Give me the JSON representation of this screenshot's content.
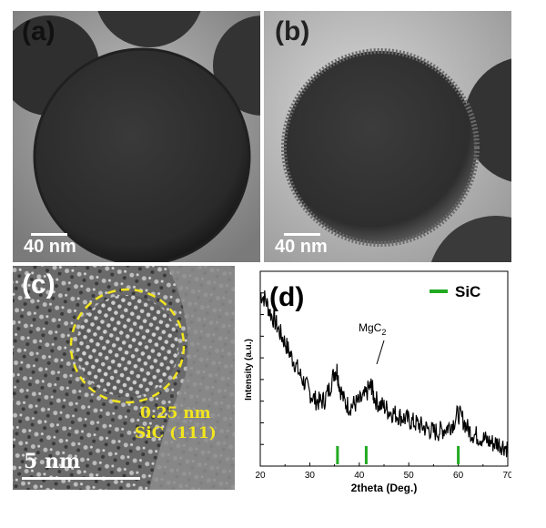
{
  "panels": {
    "a": {
      "label": "(a)",
      "scale_label": "40 nm"
    },
    "b": {
      "label": "(b)",
      "scale_label": "40 nm"
    },
    "c": {
      "label": "(c)",
      "scale_label": "5 nm",
      "spacing": "0.25 nm",
      "plane": "SiC (111)",
      "colors": {
        "annotation": "#f2e51d"
      }
    },
    "d": {
      "label": "(d)",
      "annotation": "MgC",
      "annotation_sub": "2",
      "legend": "SiC"
    }
  },
  "chart_data": {
    "type": "line",
    "xlabel": "2theta (Deg.)",
    "ylabel": "Intensity (a.u.)",
    "xlim": [
      20,
      70
    ],
    "x_ticks": [
      20,
      30,
      40,
      50,
      60,
      70
    ],
    "series": [
      {
        "name": "",
        "x": [
          20,
          21,
          22,
          23,
          24,
          25,
          26,
          27,
          28,
          29,
          30,
          31,
          32,
          33,
          34,
          35,
          35.5,
          36,
          37,
          38,
          39,
          40,
          41,
          42,
          42.5,
          43,
          44,
          45,
          46,
          47,
          48,
          49,
          50,
          51,
          52,
          53,
          54,
          55,
          56,
          57,
          58,
          59,
          60,
          61,
          62,
          63,
          64,
          65,
          66,
          67,
          68,
          69,
          70
        ],
        "y": [
          9.0,
          8.8,
          8.2,
          7.8,
          7.3,
          6.9,
          6.4,
          6.0,
          5.5,
          5.1,
          4.7,
          4.4,
          4.3,
          4.4,
          4.9,
          5.6,
          5.7,
          5.0,
          4.3,
          4.1,
          4.2,
          4.3,
          4.5,
          4.9,
          5.0,
          4.5,
          4.2,
          4.1,
          3.9,
          3.8,
          3.7,
          3.6,
          3.5,
          3.4,
          3.3,
          3.2,
          3.1,
          3.0,
          3.0,
          3.1,
          3.2,
          3.4,
          3.8,
          3.5,
          3.1,
          2.9,
          2.8,
          2.7,
          2.6,
          2.5,
          2.5,
          2.4,
          2.3
        ]
      }
    ],
    "reference_name": "SiC",
    "reference_peaks": [
      35.6,
      41.4,
      60.0
    ],
    "colors": {
      "reference": "#22aa22",
      "line": "#000000"
    }
  }
}
